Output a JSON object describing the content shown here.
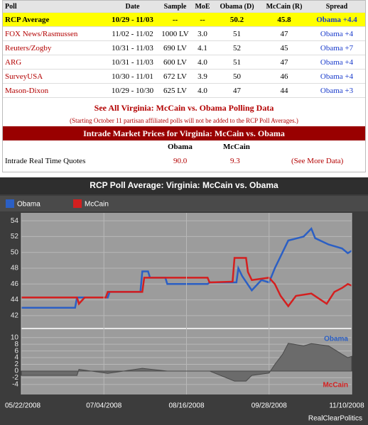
{
  "table": {
    "columns": [
      "Poll",
      "Date",
      "Sample",
      "MoE",
      "Obama (D)",
      "McCain (R)",
      "Spread"
    ],
    "rows": [
      [
        "RCP Average",
        "10/29 - 11/03",
        "--",
        "--",
        "50.2",
        "45.8",
        "Obama +4.4"
      ],
      [
        "FOX News/Rasmussen",
        "11/02 - 11/02",
        "1000 LV",
        "3.0",
        "51",
        "47",
        "Obama +4"
      ],
      [
        "Reuters/Zogby",
        "10/31 - 11/03",
        "690 LV",
        "4.1",
        "52",
        "45",
        "Obama +7"
      ],
      [
        "ARG",
        "10/31 - 11/03",
        "600 LV",
        "4.0",
        "51",
        "47",
        "Obama +4"
      ],
      [
        "SurveyUSA",
        "10/30 - 11/01",
        "672 LV",
        "3.9",
        "50",
        "46",
        "Obama +4"
      ],
      [
        "Mason-Dixon",
        "10/29 - 10/30",
        "625 LV",
        "4.0",
        "47",
        "44",
        "Obama +3"
      ]
    ],
    "link": "See All Virginia: McCain vs. Obama Polling Data",
    "note": "(Starting October 11 partisan affiliated polls will not be added to the RCP Poll Averages.)"
  },
  "intrade": {
    "title": "Intrade Market Prices for Virginia: McCain vs. Obama",
    "columns": [
      "Obama",
      "McCain"
    ],
    "row": [
      "Intrade Real Time Quotes",
      "90.0",
      "9.3",
      "(See More Data)"
    ]
  },
  "chart_data": [
    {
      "type": "line",
      "title": "RCP Poll Average: Virginia: McCain vs. Obama",
      "xlim": [
        "2008-05-22",
        "2008-11-10"
      ],
      "ylim": [
        41,
        55
      ],
      "yticks": [
        42,
        44,
        46,
        48,
        50,
        52,
        54
      ],
      "grid": true,
      "series": [
        {
          "name": "Obama",
          "color": "#2b5fc4",
          "x": [
            "2008-05-22",
            "2008-06-19",
            "2008-06-20",
            "2008-07-06",
            "2008-07-07",
            "2008-07-23",
            "2008-07-24",
            "2008-07-27",
            "2008-07-28",
            "2008-08-05",
            "2008-08-06",
            "2008-08-27",
            "2008-08-28",
            "2008-09-11",
            "2008-09-12",
            "2008-09-14",
            "2008-09-19",
            "2008-09-24",
            "2008-09-28",
            "2008-10-01",
            "2008-10-05",
            "2008-10-08",
            "2008-10-16",
            "2008-10-20",
            "2008-10-22",
            "2008-10-29",
            "2008-11-05",
            "2008-11-08",
            "2008-11-10"
          ],
          "values": [
            43,
            43,
            44.3,
            44.3,
            45,
            45,
            47.6,
            47.6,
            46.8,
            46.8,
            46,
            46,
            46.2,
            46.2,
            48,
            47,
            45.2,
            46.5,
            46.2,
            48,
            50,
            51.5,
            52,
            53,
            51.8,
            51,
            50.5,
            49.9,
            50.2
          ]
        },
        {
          "name": "McCain",
          "color": "#d41f1f",
          "x": [
            "2008-05-22",
            "2008-06-20",
            "2008-06-21",
            "2008-06-24",
            "2008-07-05",
            "2008-07-06",
            "2008-07-24",
            "2008-07-25",
            "2008-08-27",
            "2008-08-28",
            "2008-09-09",
            "2008-09-10",
            "2008-09-16",
            "2008-09-17",
            "2008-09-19",
            "2008-09-28",
            "2008-10-01",
            "2008-10-04",
            "2008-10-08",
            "2008-10-12",
            "2008-10-20",
            "2008-10-28",
            "2008-11-01",
            "2008-11-05",
            "2008-11-08",
            "2008-11-10"
          ],
          "values": [
            44.3,
            44.3,
            43.5,
            44.3,
            44.3,
            45,
            45,
            46.8,
            46.8,
            46.2,
            46.3,
            49.3,
            49.3,
            47.5,
            46.5,
            46.8,
            46,
            44.5,
            43.2,
            44.5,
            44.8,
            43.5,
            45,
            45.5,
            46,
            45.8
          ]
        }
      ],
      "legend": "top-left"
    },
    {
      "type": "area",
      "xlim": [
        "2008-05-22",
        "2008-11-10"
      ],
      "ylim": [
        -7,
        11
      ],
      "yticks": [
        -4,
        -2,
        0,
        2,
        4,
        6,
        8,
        10
      ],
      "xticks": [
        {
          "value": "2008-05-22",
          "label": "05/22/2008"
        },
        {
          "value": "2008-07-04",
          "label": "07/04/2008"
        },
        {
          "value": "2008-08-16",
          "label": "08/16/2008"
        },
        {
          "value": "2008-09-28",
          "label": "09/28/2008"
        },
        {
          "value": "2008-11-10",
          "label": "11/10/2008"
        }
      ],
      "series": [
        {
          "color": "#6b6b6b",
          "x": [
            "2008-05-22",
            "2008-06-20",
            "2008-06-21",
            "2008-07-06",
            "2008-07-24",
            "2008-08-06",
            "2008-08-28",
            "2008-09-10",
            "2008-09-16",
            "2008-09-19",
            "2008-09-28",
            "2008-10-01",
            "2008-10-05",
            "2008-10-08",
            "2008-10-16",
            "2008-10-20",
            "2008-10-29",
            "2008-11-05",
            "2008-11-08",
            "2008-11-10"
          ],
          "values": [
            -1.3,
            -1.3,
            0.5,
            -0.7,
            0.8,
            0,
            0,
            -3,
            -3,
            -1.3,
            -0.6,
            2,
            5,
            8.3,
            7.5,
            8.2,
            7.5,
            5,
            4,
            4.4
          ]
        }
      ],
      "annotations": [
        {
          "text": "Obama",
          "color": "#2b5fc4"
        },
        {
          "text": "McCain",
          "color": "#d41f1f"
        }
      ],
      "source": "RealClearPolitics"
    }
  ]
}
